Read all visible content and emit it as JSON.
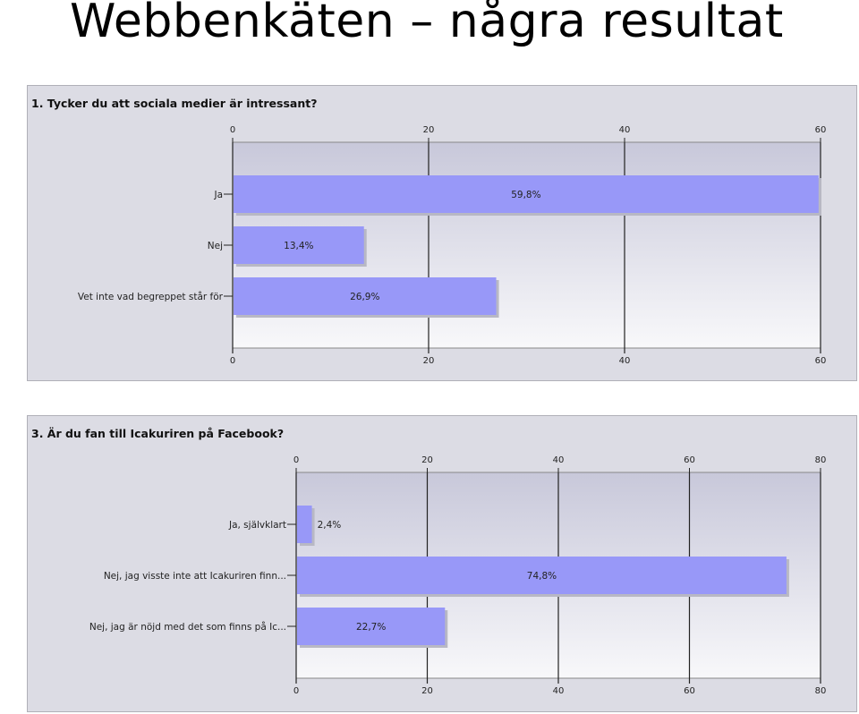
{
  "title": "Webbenkäten – några resultat",
  "chart_data": [
    {
      "type": "bar",
      "orientation": "horizontal",
      "title": "1. Tycker du att sociala medier är intressant?",
      "categories": [
        "Ja",
        "Nej",
        "Vet inte vad begreppet står för"
      ],
      "values": [
        59.8,
        13.4,
        26.9
      ],
      "value_labels": [
        "59,8%",
        "13,4%",
        "26,9%"
      ],
      "xlim": [
        0,
        60
      ],
      "xticks": [
        0,
        20,
        40,
        60
      ],
      "grid": true,
      "colors": {
        "bar": "#9898f8",
        "plot_top": "#c8c8da",
        "plot_bottom": "#f8f8fa",
        "panel": "#dcdce4"
      }
    },
    {
      "type": "bar",
      "orientation": "horizontal",
      "title": "3. Är du fan till Icakuriren på Facebook?",
      "categories": [
        "Ja, självklart",
        "Nej, jag visste inte att Icakuriren finn...",
        "Nej, jag är nöjd med det som finns på Ic..."
      ],
      "values": [
        2.4,
        74.8,
        22.7
      ],
      "value_labels": [
        "2,4%",
        "74,8%",
        "22,7%"
      ],
      "xlim": [
        0,
        80
      ],
      "xticks": [
        0,
        20,
        40,
        60,
        80
      ],
      "grid": true,
      "colors": {
        "bar": "#9898f8",
        "plot_top": "#c8c8da",
        "plot_bottom": "#f8f8fa",
        "panel": "#dcdce4"
      }
    }
  ]
}
